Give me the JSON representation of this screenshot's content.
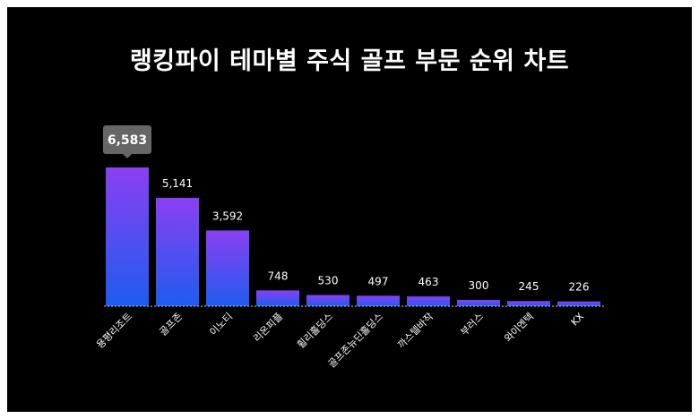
{
  "title": "랭킹파이 테마별 주식 골프 부문 순위 차트",
  "colors": {
    "background": "#000000",
    "bar_top": "#8a3ff2",
    "bar_bottom": "#1e5cf0",
    "callout_bg": "#666666",
    "baseline": "#cccccc",
    "text": "#ffffff"
  },
  "chart_data": {
    "type": "bar",
    "title": "랭킹파이 테마별 주식 골프 부문 순위 차트",
    "categories": [
      "용평리조트",
      "골프존",
      "이노티",
      "리온피플",
      "휠리홀딩스",
      "골프존뉴딘홀딩스",
      "까스텔바작",
      "부러스",
      "와이엔텍",
      "KX"
    ],
    "values": [
      6583,
      5141,
      3592,
      748,
      530,
      497,
      463,
      300,
      245,
      226
    ],
    "value_labels": [
      "6,583",
      "5,141",
      "3,592",
      "748",
      "530",
      "497",
      "463",
      "300",
      "245",
      "226"
    ],
    "highlight_index": 0,
    "ylim": [
      0,
      6583
    ],
    "grid": false,
    "legend": "none"
  }
}
